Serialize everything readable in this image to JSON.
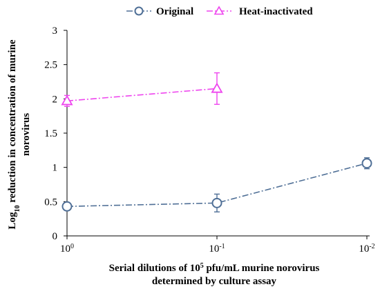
{
  "chart_data": {
    "type": "line",
    "x_ticks": [
      {
        "base": "10",
        "exp": "0"
      },
      {
        "base": "10",
        "exp": "-1"
      },
      {
        "base": "10",
        "exp": "-2"
      }
    ],
    "xlabel_line1_pre": "Serial dilutions  of 10",
    "xlabel_line1_sup": "5",
    "xlabel_line1_post": " pfu/mL  murine norovirus",
    "xlabel_line2": "determined by culture assay",
    "ylabel_line1_pre": "Log",
    "ylabel_line1_sub": "10",
    "ylabel_line1_post": " reduction in concentration of murine",
    "ylabel_line2": "norovirus",
    "ylim": [
      0,
      3
    ],
    "y_ticks": [
      "0",
      "0.5",
      "1",
      "1.5",
      "2",
      "2.5",
      "3"
    ],
    "legend_position": "top",
    "series": [
      {
        "name": "Original",
        "color": "#4f6f96",
        "marker": "circle",
        "points": [
          {
            "x": 0,
            "y": 0.43,
            "err": 0.02
          },
          {
            "x": 1,
            "y": 0.48,
            "err": 0.13
          },
          {
            "x": 2,
            "y": 1.06,
            "err": 0.08
          }
        ]
      },
      {
        "name": "Heat-inactivated",
        "color": "#ee44ee",
        "marker": "triangle",
        "points": [
          {
            "x": 0,
            "y": 1.97,
            "err": 0.08
          },
          {
            "x": 1,
            "y": 2.15,
            "err": 0.23
          }
        ]
      }
    ]
  }
}
